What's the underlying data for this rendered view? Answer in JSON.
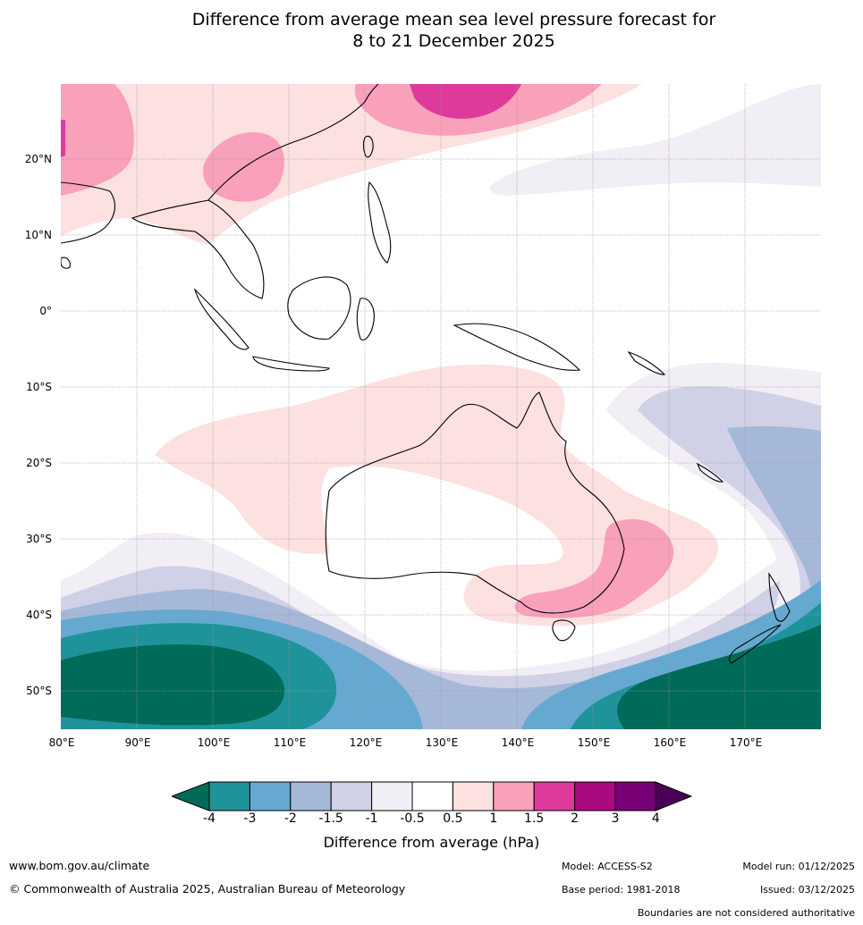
{
  "title": {
    "line1": "Difference from average mean sea level pressure forecast for",
    "line2": "8 to 21 December 2025"
  },
  "map": {
    "lat_labels": [
      "20°N",
      "10°N",
      "0°",
      "10°S",
      "20°S",
      "30°S",
      "40°S",
      "50°S"
    ],
    "lon_labels": [
      "80°E",
      "90°E",
      "100°E",
      "110°E",
      "120°E",
      "130°E",
      "140°E",
      "150°E",
      "160°E",
      "170°E"
    ]
  },
  "legend": {
    "title": "Difference from average (hPa)",
    "ticks": [
      "-4",
      "-3",
      "-2",
      "-1.5",
      "-1",
      "-0.5",
      "0.5",
      "1",
      "1.5",
      "2",
      "3",
      "4"
    ],
    "colors": {
      "below_min": "#006b58",
      "bins": [
        "#1f939a",
        "#66a9d0",
        "#a6b8d8",
        "#d0d0e6",
        "#f2eef5",
        "#ffffff",
        "#fde0e0",
        "#f9a0bb",
        "#de3a9b",
        "#aa0a7e",
        "#770077"
      ],
      "above_max": "#4a0057"
    }
  },
  "footer": {
    "url": "www.bom.gov.au/climate",
    "copyright": "© Commonwealth of Australia 2025, Australian Bureau of Meteorology",
    "model": "Model: ACCESS-S2",
    "base_period": "Base period: 1981-2018",
    "model_run": "Model run: 01/12/2025",
    "issued": "Issued: 03/12/2025",
    "disclaimer": "Boundaries are not considered authoritative"
  }
}
